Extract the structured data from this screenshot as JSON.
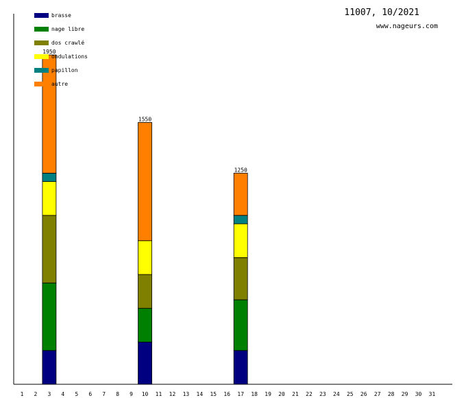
{
  "chart_data": {
    "type": "bar",
    "stacked": true,
    "title": "11007, 10/2021",
    "subtitle": "www.nageurs.com",
    "categories": [
      "1",
      "2",
      "3",
      "4",
      "5",
      "6",
      "7",
      "8",
      "9",
      "10",
      "11",
      "12",
      "13",
      "14",
      "15",
      "16",
      "17",
      "18",
      "19",
      "20",
      "21",
      "22",
      "23",
      "24",
      "25",
      "26",
      "27",
      "28",
      "29",
      "30",
      "31"
    ],
    "ylim": [
      0,
      1950
    ],
    "grid": false,
    "legend_position": "top-left",
    "series": [
      {
        "name": "brasse",
        "color": "#000080",
        "values": [
          0,
          0,
          200,
          0,
          0,
          0,
          0,
          0,
          0,
          250,
          0,
          0,
          0,
          0,
          0,
          0,
          200,
          0,
          0,
          0,
          0,
          0,
          0,
          0,
          0,
          0,
          0,
          0,
          0,
          0,
          0
        ]
      },
      {
        "name": "nage libre",
        "color": "#008000",
        "values": [
          0,
          0,
          400,
          0,
          0,
          0,
          0,
          0,
          0,
          200,
          0,
          0,
          0,
          0,
          0,
          0,
          300,
          0,
          0,
          0,
          0,
          0,
          0,
          0,
          0,
          0,
          0,
          0,
          0,
          0,
          0
        ]
      },
      {
        "name": "dos crawlé",
        "color": "#808000",
        "values": [
          0,
          0,
          400,
          0,
          0,
          0,
          0,
          0,
          0,
          200,
          0,
          0,
          0,
          0,
          0,
          0,
          250,
          0,
          0,
          0,
          0,
          0,
          0,
          0,
          0,
          0,
          0,
          0,
          0,
          0,
          0
        ]
      },
      {
        "name": "ondulations",
        "color": "#ffff00",
        "values": [
          0,
          0,
          200,
          0,
          0,
          0,
          0,
          0,
          0,
          200,
          0,
          0,
          0,
          0,
          0,
          0,
          200,
          0,
          0,
          0,
          0,
          0,
          0,
          0,
          0,
          0,
          0,
          0,
          0,
          0,
          0
        ]
      },
      {
        "name": "papillon",
        "color": "#008080",
        "values": [
          0,
          0,
          50,
          0,
          0,
          0,
          0,
          0,
          0,
          0,
          0,
          0,
          0,
          0,
          0,
          0,
          50,
          0,
          0,
          0,
          0,
          0,
          0,
          0,
          0,
          0,
          0,
          0,
          0,
          0,
          0
        ]
      },
      {
        "name": "autre",
        "color": "#ff8000",
        "values": [
          0,
          0,
          700,
          0,
          0,
          0,
          0,
          0,
          0,
          700,
          0,
          0,
          0,
          0,
          0,
          0,
          250,
          0,
          0,
          0,
          0,
          0,
          0,
          0,
          0,
          0,
          0,
          0,
          0,
          0,
          0
        ]
      }
    ],
    "totals": [
      {
        "category": "3",
        "label": "1950"
      },
      {
        "category": "10",
        "label": "1550"
      },
      {
        "category": "17",
        "label": "1250"
      }
    ]
  }
}
